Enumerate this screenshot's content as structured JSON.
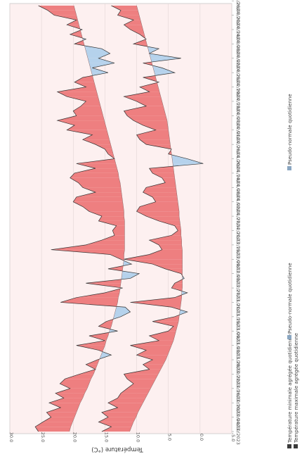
{
  "chart_data": {
    "type": "area",
    "orientation": "rotated-90-clockwise",
    "ylabel": "Température (°C)",
    "ylim": [
      -5,
      30
    ],
    "yticks": [
      "30.0",
      "25.0",
      "20.0",
      "15.0",
      "10.0",
      "5.0",
      "0.0",
      "-5.0"
    ],
    "ytick_values": [
      30,
      25,
      20,
      15,
      10,
      5,
      0,
      -5
    ],
    "xtick_labels": [
      "04/10/2023",
      "10/10/2023",
      "16/10/2023",
      "22/10/2023",
      "28/10/2023",
      "03/11/2023",
      "09/11/2023",
      "15/11/2023",
      "21/11/2023",
      "27/11/2023",
      "03/12/2023",
      "09/12/2023",
      "15/12/2023",
      "21/12/2023",
      "27/12/2023",
      "02/01/2024",
      "08/01/2024",
      "14/01/2024",
      "20/01/2024",
      "26/01/2024",
      "01/02/2024",
      "07/02/2024",
      "13/02/2024",
      "19/02/2024",
      "25/02/2024",
      "02/03/2024",
      "08/03/2024",
      "14/03/2024",
      "20/03/2024",
      "26/03/2024",
      "01/04/2024"
    ],
    "day_step": 2,
    "legend": [
      {
        "label": "Température minimale agrégée quotidienne",
        "color": "#3a3a3a"
      },
      {
        "label": "Pseudo-normale quotidienne",
        "color": "#8aa6c1"
      },
      {
        "label": "Température maximale agrégée quotidienne",
        "color": "#3a3a3a"
      },
      {
        "label": "Pseudo-normale quotidienne",
        "color": "#8aa6c1"
      }
    ],
    "colors": {
      "above_normal": "#ee7f80",
      "below_normal": "#b5d2ec",
      "line": "#333333"
    },
    "series": [
      {
        "name": "Température maximale agrégée quotidienne",
        "normal_name": "Pseudo-normale quotidienne",
        "normal": [
          20.6,
          20.4,
          20.1,
          19.8,
          19.5,
          19.2,
          18.9,
          18.5,
          18.2,
          17.8,
          17.5,
          17.2,
          16.8,
          16.5,
          16.2,
          15.9,
          15.6,
          15.3,
          15.0,
          14.8,
          14.5,
          14.3,
          14.0,
          13.8,
          13.6,
          13.4,
          13.2,
          13.0,
          12.9,
          12.7,
          12.6,
          12.5,
          12.4,
          12.3,
          12.2,
          12.1,
          12.0,
          12.0,
          11.9,
          11.9,
          11.9,
          11.9,
          11.9,
          11.9,
          11.9,
          12.0,
          12.0,
          12.1,
          12.2,
          12.3,
          12.4,
          12.5,
          12.6,
          12.8,
          12.9,
          13.1,
          13.3,
          13.5,
          13.7,
          13.9,
          14.1,
          14.3,
          14.5,
          14.7,
          14.9,
          15.1,
          15.3,
          15.5,
          15.7,
          15.9,
          16.1,
          16.3,
          16.5,
          16.7,
          16.9,
          17.1,
          17.3,
          17.5,
          17.7,
          17.9,
          18.1,
          18.3,
          18.5,
          18.7,
          18.9,
          19.1,
          19.3,
          19.5,
          19.7,
          19.9
        ],
        "values": [
          25.5,
          26.0,
          24.8,
          23.5,
          24.2,
          22.0,
          23.8,
          21.5,
          22.8,
          20.5,
          22.1,
          21.3,
          19.0,
          16.5,
          18.0,
          16.2,
          14.0,
          16.0,
          19.5,
          15.0,
          17.5,
          13.0,
          16.0,
          14.8,
          12.5,
          11.0,
          11.8,
          22.0,
          19.5,
          15.0,
          12.2,
          18.0,
          11.0,
          9.6,
          14.5,
          10.8,
          12.5,
          14.2,
          23.5,
          18.0,
          15.5,
          13.5,
          13.8,
          13.2,
          16.0,
          15.5,
          17.5,
          18.5,
          20.0,
          19.5,
          16.5,
          18.5,
          19.2,
          20.5,
          19.8,
          16.5,
          19.5,
          13.5,
          14.5,
          15.0,
          16.5,
          18.5,
          17.0,
          21.0,
          19.8,
          22.5,
          19.5,
          20.0,
          18.8,
          18.0,
          21.0,
          22.5,
          18.0,
          19.8,
          18.5,
          14.5,
          17.0,
          13.5,
          16.0,
          14.2,
          15.5,
          19.8,
          18.0,
          20.5,
          18.6,
          21.0,
          19.5,
          23.0,
          24.0,
          25.5
        ]
      },
      {
        "name": "Température minimale agrégée quotidienne",
        "normal_name": "Pseudo-normale quotidienne",
        "normal": [
          11.1,
          10.8,
          10.5,
          10.1,
          9.8,
          9.4,
          9.0,
          8.6,
          8.2,
          7.8,
          7.4,
          7.0,
          6.6,
          6.2,
          5.8,
          5.4,
          5.1,
          4.8,
          4.5,
          4.2,
          4.0,
          3.8,
          3.6,
          3.4,
          3.3,
          3.2,
          3.1,
          3.0,
          2.9,
          2.9,
          2.8,
          2.8,
          2.8,
          2.8,
          2.8,
          2.8,
          2.8,
          2.8,
          2.8,
          2.9,
          2.9,
          3.0,
          3.0,
          3.1,
          3.2,
          3.3,
          3.3,
          3.4,
          3.5,
          3.6,
          3.7,
          3.8,
          3.9,
          4.0,
          4.1,
          4.2,
          4.3,
          4.4,
          4.5,
          4.6,
          4.7,
          4.8,
          4.9,
          5.0,
          5.1,
          5.2,
          5.4,
          5.6,
          5.8,
          6.0,
          6.2,
          6.4,
          6.6,
          6.8,
          7.0,
          7.2,
          7.4,
          7.6,
          7.8,
          8.0,
          8.2,
          8.4,
          8.6,
          8.8,
          9.0,
          9.2,
          9.4,
          9.6,
          9.8,
          10.0
        ],
        "values": [
          15.5,
          14.0,
          16.0,
          14.5,
          15.5,
          13.0,
          14.5,
          13.0,
          12.5,
          11.5,
          10.5,
          11.5,
          12.0,
          8.0,
          9.0,
          7.5,
          10.0,
          8.5,
          11.0,
          6.5,
          8.0,
          5.0,
          4.2,
          7.5,
          4.0,
          2.0,
          4.5,
          11.0,
          4.0,
          2.0,
          4.5,
          4.0,
          2.5,
          3.0,
          5.5,
          7.5,
          12.0,
          8.0,
          6.0,
          6.5,
          8.0,
          4.5,
          3.5,
          4.0,
          6.5,
          8.5,
          10.0,
          9.5,
          7.0,
          7.5,
          9.0,
          8.5,
          5.5,
          6.0,
          7.5,
          8.0,
          -0.5,
          2.0,
          5.0,
          4.5,
          8.5,
          9.5,
          10.0,
          7.0,
          9.0,
          10.5,
          11.5,
          12.0,
          8.5,
          10.0,
          12.0,
          8.0,
          9.5,
          6.5,
          9.0,
          4.0,
          6.0,
          9.0,
          3.0,
          8.0,
          6.5,
          10.5,
          8.5,
          9.5,
          11.0,
          12.0,
          10.5,
          13.0,
          12.5,
          14.0
        ]
      }
    ]
  }
}
